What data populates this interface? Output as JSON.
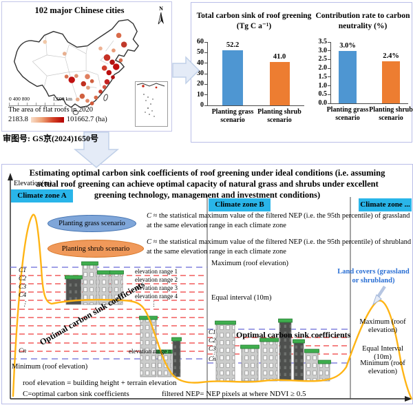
{
  "map_panel": {
    "title": "102 major Chinese cities",
    "north_label": "N",
    "scale_ticks": "0  400 800",
    "scale_end": "1,600 km",
    "legend_title": "The area of flat roofs in 2020",
    "legend_min": "2183.8",
    "legend_max": "101662.7 (ha)",
    "approval_number": "审图号: GS京(2024)1650号"
  },
  "chart_data": [
    {
      "type": "bar",
      "title": "Total carbon sink of roof greening (Tg C a⁻¹)",
      "categories": [
        "Planting grass scenario",
        "Planting shrub scenario"
      ],
      "values": [
        52.2,
        41.0
      ],
      "labels": [
        "52.2",
        "41.0"
      ],
      "colors": [
        "#4e96d2",
        "#ed7d31"
      ],
      "xlabel": "",
      "ylabel": "",
      "ylim": [
        0,
        60
      ],
      "yticks": [
        "0",
        "10",
        "20",
        "30",
        "40",
        "50",
        "60"
      ],
      "grid": false,
      "legend": "none"
    },
    {
      "type": "bar",
      "title": "Contribution rate to carbon neutrality (%)",
      "categories": [
        "Planting grass scenario",
        "Planting shrub scenario"
      ],
      "values": [
        3.0,
        2.4
      ],
      "labels": [
        "3.0%",
        "2.4%"
      ],
      "colors": [
        "#4e96d2",
        "#ed7d31"
      ],
      "xlabel": "",
      "ylabel": "",
      "ylim": [
        0,
        3.5
      ],
      "yticks": [
        "0.0",
        "0.5",
        "1.0",
        "1.5",
        "2.0",
        "2.5",
        "3.0",
        "3.5"
      ],
      "grid": false,
      "legend": "none"
    }
  ],
  "diagram": {
    "title": "Estimating optimal carbon sink coefficients of roof greening under ideal conditions (i.e. assuming actual roof greening can achieve optimal capacity of natural grass and shrubs under excellent greening technology, management and investment conditions)",
    "elevation_axis_label": "Elevation(m)",
    "zones": [
      "Climate zone A",
      "Climate zone B",
      "Climate zone ..."
    ],
    "scenarios": [
      {
        "label": "Planting grass scenario",
        "var": "C",
        "description": "≈ the statistical maximum value of the filtered NEP (i.e. the 95th percentile) of grassland at the same elevation range in each climate zone"
      },
      {
        "label": "Planting shrub scenario",
        "var": "C",
        "description": "≈ the statistical maximum value of the filtered NEP (i.e. the 95th percentile) of shrubland at the same elevation range in each climate zone"
      }
    ],
    "zone_a": {
      "coeff_labels": [
        "C1",
        "C2",
        "C3",
        "C4",
        "⋮",
        "Cn"
      ],
      "range_labels": [
        "elevation range 1",
        "elevation range 2",
        "elevation range 3",
        "elevation range 4",
        "⋮",
        "elevation range n"
      ],
      "max_label": "Maximum (roof elevation)",
      "interval_label": "Equal interval (10m)",
      "min_label": "Minimum (roof elevation)",
      "diagonal_label": "Optimal carbon sink coefficients"
    },
    "zone_b": {
      "coeff_labels": [
        "C1",
        "C2",
        "C3",
        "⋮",
        "Cn"
      ],
      "coeff_title": "Optimal carbon sink coefficients"
    },
    "zone_c": {
      "max_label": "Maximum (roof elevation)",
      "interval_label": "Equal Interval (10m)",
      "min_label": "Minimum (roof elevation)"
    },
    "land_covers_label": "Land covers (grassland or shrubland)",
    "footnotes": [
      "roof elevation = building height + terrain elevation",
      "C=optimal carbon sink coefficients",
      "filtered NEP= NEP pixels at where NDVI ≥ 0.5"
    ]
  },
  "colors": {
    "zone_box_cyan": "#29b5e9",
    "bar_blue": "#4e96d2",
    "bar_orange": "#ed7d31",
    "dash_red": "#f25c5c",
    "dash_blue": "#8080dd",
    "terrain_orange": "#ffb414",
    "roof_green": "#3fae4e",
    "land_cover_text": "#2a6fd4"
  }
}
